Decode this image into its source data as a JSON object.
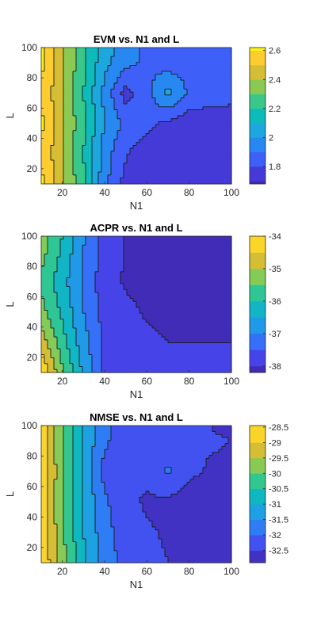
{
  "chart_data": [
    {
      "type": "contourf",
      "title": "EVM vs. N1 and L",
      "xlabel": "N1",
      "ylabel": "L",
      "xlim": [
        10,
        100
      ],
      "ylim": [
        10,
        100
      ],
      "xticks": [
        20,
        40,
        60,
        80,
        100
      ],
      "yticks": [
        20,
        40,
        60,
        80,
        100
      ],
      "colorbar_ticks": [
        "2.6",
        "2.4",
        "2.2",
        "2",
        "1.8"
      ],
      "colorbar_tick_values": [
        2.6,
        2.4,
        2.2,
        2.0,
        1.8
      ],
      "clim": [
        1.68,
        2.62
      ],
      "colormap": "parula",
      "x": [
        10,
        20,
        30,
        40,
        50,
        60,
        70,
        80,
        90,
        100
      ],
      "y": [
        10,
        30,
        50,
        70,
        90,
        100
      ],
      "z": [
        [
          2.62,
          2.42,
          2.22,
          1.93,
          1.76,
          1.72,
          1.7,
          1.7,
          1.72,
          1.73
        ],
        [
          2.6,
          2.4,
          2.2,
          1.95,
          1.81,
          1.74,
          1.72,
          1.71,
          1.73,
          1.75
        ],
        [
          2.62,
          2.42,
          2.22,
          2.0,
          1.87,
          1.83,
          1.78,
          1.74,
          1.75,
          1.77
        ],
        [
          2.6,
          2.4,
          2.2,
          1.97,
          1.76,
          1.87,
          2.03,
          1.88,
          1.84,
          1.82
        ],
        [
          2.62,
          2.42,
          2.22,
          2.03,
          1.93,
          1.88,
          1.85,
          1.86,
          1.88,
          1.9
        ],
        [
          2.62,
          2.42,
          2.22,
          2.05,
          1.95,
          1.88,
          1.83,
          1.82,
          1.88,
          1.9
        ]
      ],
      "levels": [
        1.7,
        1.8,
        1.9,
        2.0,
        2.1,
        2.2,
        2.3,
        2.4,
        2.5,
        2.6
      ]
    },
    {
      "type": "contourf",
      "title": "ACPR vs. N1 and L",
      "xlabel": "N1",
      "ylabel": "L",
      "xlim": [
        10,
        100
      ],
      "ylim": [
        10,
        100
      ],
      "xticks": [
        20,
        40,
        60,
        80,
        100
      ],
      "yticks": [
        20,
        40,
        60,
        80,
        100
      ],
      "colorbar_ticks": [
        "-34",
        "-35",
        "-36",
        "-37",
        "-38"
      ],
      "colorbar_tick_values": [
        -34,
        -35,
        -36,
        -37,
        -38
      ],
      "clim": [
        -38.2,
        -34.0
      ],
      "colormap": "parula",
      "x": [
        10,
        20,
        30,
        40,
        50,
        60,
        70,
        80,
        90,
        100
      ],
      "y": [
        10,
        30,
        50,
        70,
        90,
        100
      ],
      "z": [
        [
          -34.0,
          -35.4,
          -36.6,
          -37.6,
          -37.8,
          -37.9,
          -37.9,
          -37.9,
          -37.9,
          -37.9
        ],
        [
          -34.7,
          -35.8,
          -36.8,
          -37.6,
          -37.8,
          -37.9,
          -38.0,
          -38.0,
          -38.0,
          -38.0
        ],
        [
          -35.3,
          -36.1,
          -37.0,
          -37.7,
          -37.9,
          -38.05,
          -38.1,
          -38.1,
          -38.1,
          -38.1
        ],
        [
          -35.6,
          -36.3,
          -37.1,
          -37.8,
          -38.05,
          -38.1,
          -38.15,
          -38.2,
          -38.2,
          -38.2
        ],
        [
          -35.3,
          -36.1,
          -37.0,
          -37.7,
          -38.05,
          -38.1,
          -38.15,
          -38.25,
          -38.3,
          -38.3
        ],
        [
          -35.2,
          -36.0,
          -36.95,
          -37.7,
          -38.05,
          -38.1,
          -38.15,
          -38.25,
          -38.3,
          -38.3
        ]
      ],
      "levels": [
        -38.0,
        -37.5,
        -37.0,
        -36.5,
        -36.0,
        -35.5,
        -35.0,
        -34.5
      ]
    },
    {
      "type": "contourf",
      "title": "NMSE vs. N1 and L",
      "xlabel": "N1",
      "ylabel": "L",
      "xlim": [
        10,
        100
      ],
      "ylim": [
        10,
        100
      ],
      "xticks": [
        20,
        40,
        60,
        80,
        100
      ],
      "yticks": [
        20,
        40,
        60,
        80,
        100
      ],
      "colorbar_ticks": [
        "-28.5",
        "-29",
        "-29.5",
        "-30",
        "-30.5",
        "-31",
        "-31.5",
        "-32",
        "-32.5"
      ],
      "colorbar_tick_values": [
        -28.5,
        -29,
        -29.5,
        -30,
        -30.5,
        -31,
        -31.5,
        -32,
        -32.5
      ],
      "clim": [
        -32.9,
        -28.45
      ],
      "colormap": "parula",
      "x": [
        10,
        20,
        30,
        40,
        50,
        60,
        70,
        80,
        90,
        100
      ],
      "y": [
        10,
        30,
        50,
        70,
        90,
        100
      ],
      "z": [
        [
          -28.5,
          -29.8,
          -30.9,
          -31.7,
          -32.2,
          -32.4,
          -32.5,
          -32.5,
          -32.55,
          -32.6
        ],
        [
          -28.6,
          -29.9,
          -31.0,
          -31.8,
          -32.3,
          -32.45,
          -32.55,
          -32.7,
          -32.75,
          -32.7
        ],
        [
          -28.7,
          -30.0,
          -31.1,
          -31.9,
          -32.4,
          -32.55,
          -32.6,
          -32.75,
          -32.8,
          -32.85
        ],
        [
          -28.6,
          -29.9,
          -31.0,
          -32.2,
          -32.5,
          -32.4,
          -31.9,
          -32.4,
          -32.55,
          -32.6
        ],
        [
          -28.7,
          -30.0,
          -31.1,
          -31.9,
          -32.3,
          -32.4,
          -32.45,
          -32.45,
          -32.45,
          -32.5
        ],
        [
          -28.7,
          -30.0,
          -31.1,
          -31.9,
          -32.3,
          -32.4,
          -32.45,
          -32.45,
          -32.5,
          -32.6
        ]
      ],
      "levels": [
        -32.5,
        -32.0,
        -31.5,
        -31.0,
        -30.5,
        -30.0,
        -29.5,
        -29.0
      ]
    }
  ]
}
